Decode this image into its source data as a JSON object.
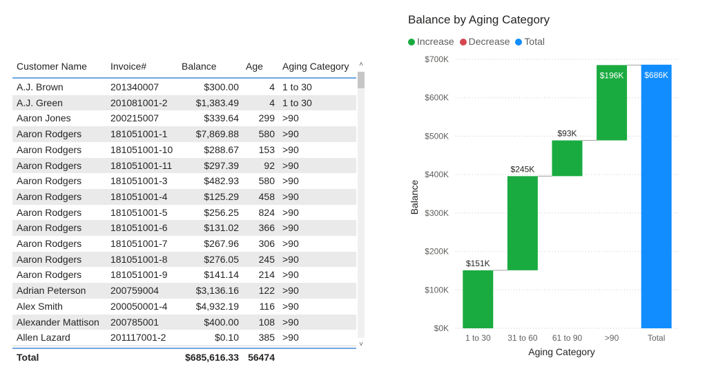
{
  "table": {
    "columns": [
      "Customer Name",
      "Invoice#",
      "Balance",
      "Age",
      "Aging Category"
    ],
    "rows": [
      [
        "A.J. Brown",
        "201340007",
        "$300.00",
        "4",
        "1 to 30"
      ],
      [
        "A.J. Green",
        "201081001-2",
        "$1,383.49",
        "4",
        "1 to 30"
      ],
      [
        "Aaron Jones",
        "200215007",
        "$339.64",
        "299",
        ">90"
      ],
      [
        "Aaron Rodgers",
        "181051001-1",
        "$7,869.88",
        "580",
        ">90"
      ],
      [
        "Aaron Rodgers",
        "181051001-10",
        "$288.67",
        "153",
        ">90"
      ],
      [
        "Aaron Rodgers",
        "181051001-11",
        "$297.39",
        "92",
        ">90"
      ],
      [
        "Aaron Rodgers",
        "181051001-3",
        "$482.93",
        "580",
        ">90"
      ],
      [
        "Aaron Rodgers",
        "181051001-4",
        "$125.29",
        "458",
        ">90"
      ],
      [
        "Aaron Rodgers",
        "181051001-5",
        "$256.25",
        "824",
        ">90"
      ],
      [
        "Aaron Rodgers",
        "181051001-6",
        "$131.02",
        "366",
        ">90"
      ],
      [
        "Aaron Rodgers",
        "181051001-7",
        "$267.96",
        "306",
        ">90"
      ],
      [
        "Aaron Rodgers",
        "181051001-8",
        "$276.05",
        "245",
        ">90"
      ],
      [
        "Aaron Rodgers",
        "181051001-9",
        "$141.14",
        "214",
        ">90"
      ],
      [
        "Adrian Peterson",
        "200759004",
        "$3,136.16",
        "122",
        ">90"
      ],
      [
        "Alex Smith",
        "200050001-4",
        "$4,932.19",
        "116",
        ">90"
      ],
      [
        "Alexander Mattison",
        "200785001",
        "$400.00",
        "108",
        ">90"
      ],
      [
        "Allen Lazard",
        "201117001-2",
        "$0.10",
        "385",
        ">90"
      ]
    ],
    "total": {
      "label": "Total",
      "balance": "$685,616.33",
      "age": "56474"
    },
    "scroll_up_glyph": "˄",
    "scroll_down_glyph": "˅"
  },
  "chart": {
    "legend": [
      {
        "label": "Increase",
        "color": "#1aab40"
      },
      {
        "label": "Decrease",
        "color": "#d64550"
      },
      {
        "label": "Total",
        "color": "#118dff"
      }
    ]
  },
  "chart_data": {
    "type": "waterfall",
    "title": "Balance by Aging Category",
    "xlabel": "Aging Category",
    "ylabel": "Balance",
    "categories": [
      "1 to 30",
      "31 to 60",
      "61 to 90",
      ">90",
      "Total"
    ],
    "values": [
      151000,
      245000,
      93000,
      196000,
      686000
    ],
    "kinds": [
      "increase",
      "increase",
      "increase",
      "increase",
      "total"
    ],
    "data_labels": [
      "$151K",
      "$245K",
      "$93K",
      "$196K",
      "$686K"
    ],
    "yticks": [
      0,
      100000,
      200000,
      300000,
      400000,
      500000,
      600000,
      700000
    ],
    "ytick_labels": [
      "$0K",
      "$100K",
      "$200K",
      "$300K",
      "$400K",
      "$500K",
      "$600K",
      "$700K"
    ],
    "ylim": [
      0,
      700000
    ],
    "grid": true,
    "legend_position": "top-left"
  }
}
